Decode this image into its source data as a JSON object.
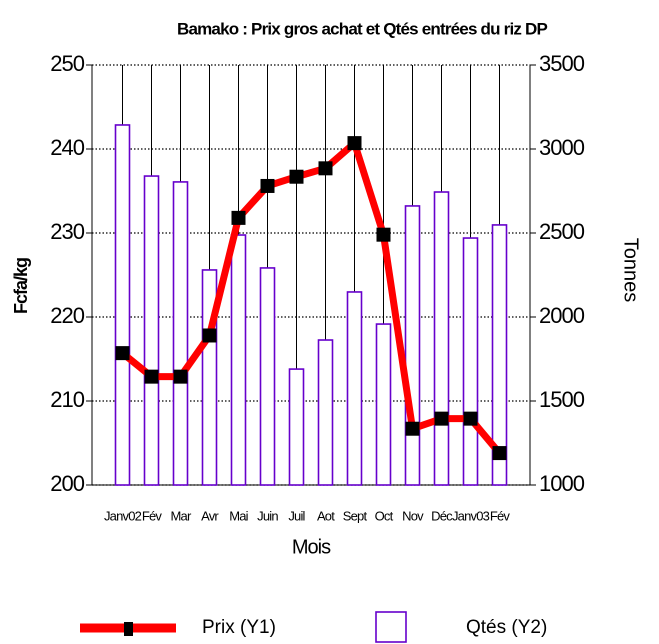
{
  "chart_data": {
    "type": "bar",
    "title": "Bamako : Prix  gros achat et Qtés entrées  du riz DP",
    "x_label": "Mois",
    "y_label": "Fcfa/kg",
    "y2_label": "Tonnes",
    "categories": [
      "Janv02",
      "Fév",
      "Mar",
      "Avr",
      "Mai",
      "Juin",
      "Juil",
      "Aot",
      "Sept",
      "Oct",
      "Nov",
      "Déc",
      "Janv03",
      "Fév"
    ],
    "series": [
      {
        "name": "Prix (Y1)",
        "type": "line",
        "color": "#ff0000",
        "marker_color": "#000000",
        "values": [
          215.7,
          212.9,
          212.9,
          217.8,
          231.8,
          235.6,
          236.7,
          237.7,
          240.7,
          229.8,
          206.7,
          207.9,
          207.9,
          203.8
        ]
      },
      {
        "name": "Qtés (Y2)",
        "type": "bar",
        "axis": "y2",
        "color": "#6600cc",
        "values": [
          3143,
          2839,
          2804,
          2280,
          2488,
          2292,
          1690,
          1863,
          2149,
          1958,
          2661,
          2744,
          2470,
          2548
        ]
      }
    ],
    "ylim": [
      200,
      250
    ],
    "yticks": [
      200,
      210,
      220,
      230,
      240,
      250
    ],
    "y2lim": [
      1000,
      3500
    ],
    "y2ticks": [
      1000,
      1500,
      2000,
      2500,
      3000,
      3500
    ],
    "grid": true,
    "legend": "bottom"
  }
}
